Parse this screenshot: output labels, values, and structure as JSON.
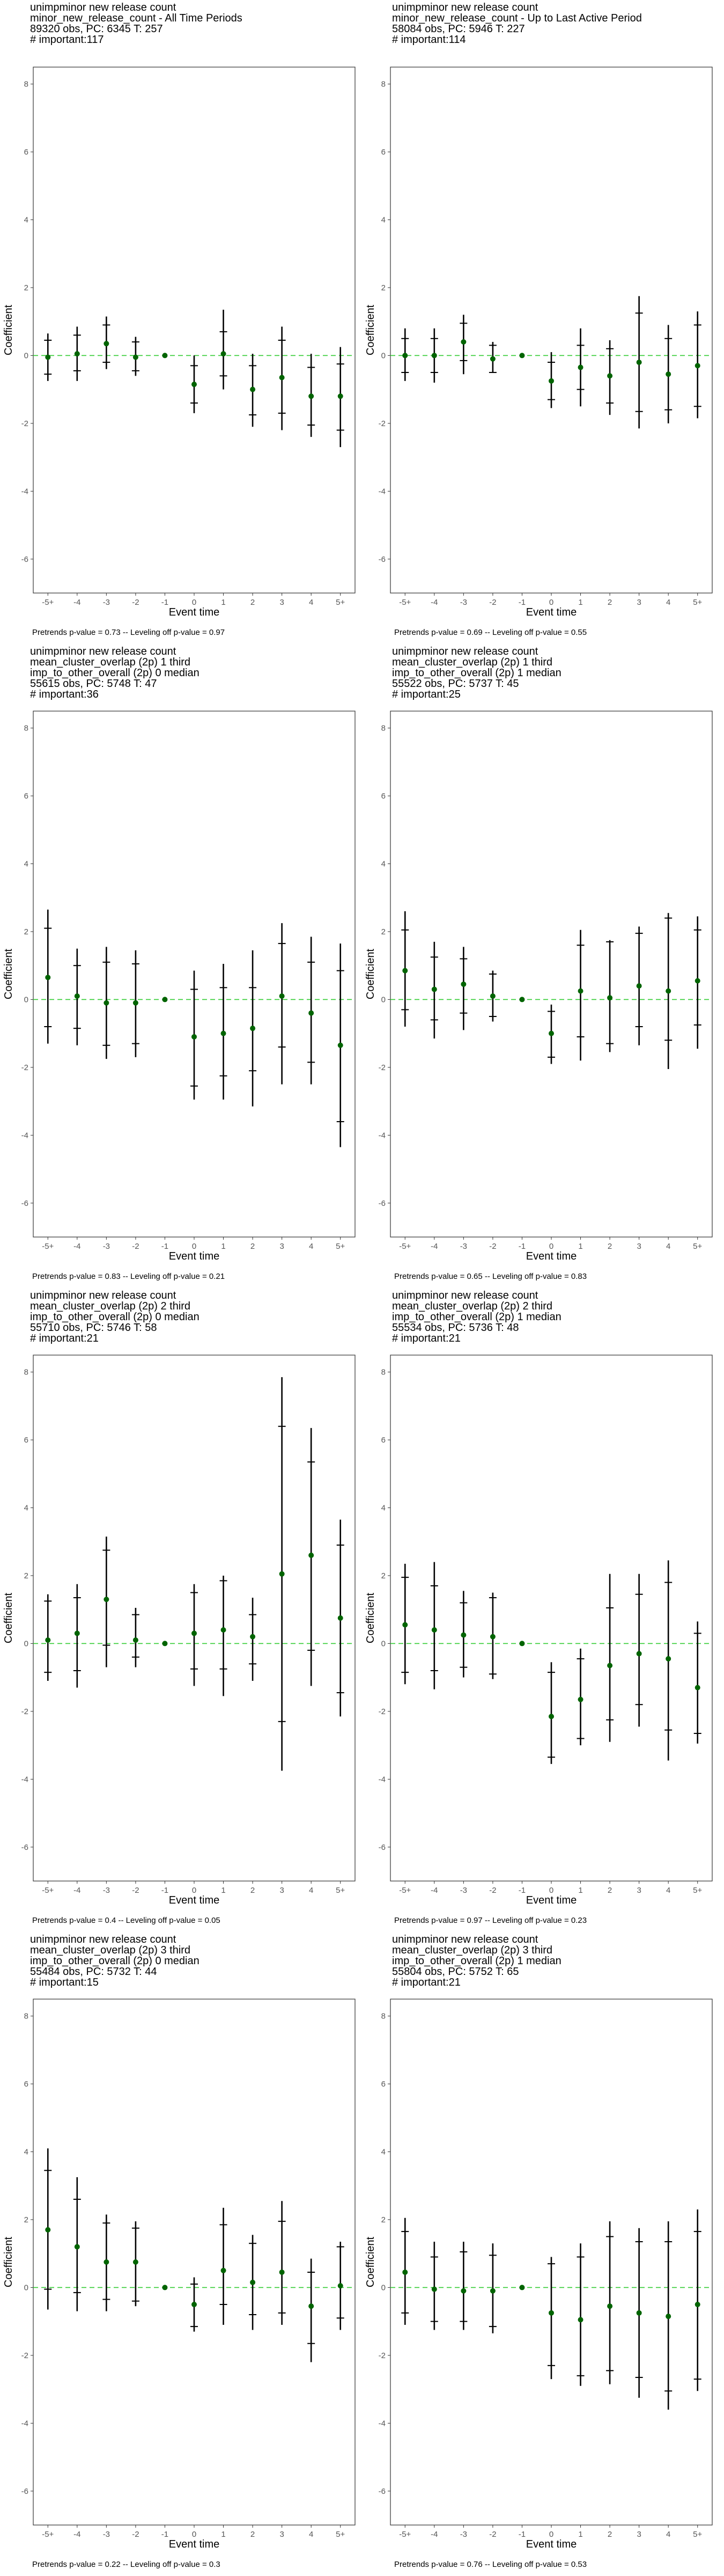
{
  "chart_data": [
    {
      "type": "scatter",
      "title_lines": [
        " unimpminor new release count",
        "minor_new_release_count - All Time Periods",
        "89320 obs, PC: 6345 T: 257",
        "# important:117"
      ],
      "footer": "Pretrends p-value = 0.73 -- Leveling off p-value = 0.97",
      "xlabel": "Event time",
      "ylabel": "Coefficient",
      "ylim": [
        -7,
        8.5
      ],
      "yticks": [
        -6,
        -4,
        -2,
        0,
        2,
        4,
        6,
        8
      ],
      "categories": [
        "-5+",
        "-4",
        "-3",
        "-2",
        "-1",
        "0",
        "1",
        "2",
        "3",
        "4",
        "5+"
      ],
      "series": [
        {
          "values": [
            -0.05,
            0.05,
            0.35,
            -0.05,
            0.0,
            -0.85,
            0.05,
            -1.0,
            -0.65,
            -1.2,
            -1.2
          ],
          "ci90_low": [
            -0.55,
            -0.45,
            -0.2,
            -0.45,
            0.0,
            -1.4,
            -0.6,
            -1.75,
            -1.7,
            -2.05,
            -2.2
          ],
          "ci90_high": [
            0.45,
            0.6,
            0.9,
            0.4,
            0.0,
            -0.3,
            0.7,
            -0.3,
            0.45,
            -0.35,
            -0.25
          ],
          "ci95_low": [
            -0.75,
            -0.75,
            -0.4,
            -0.6,
            0.0,
            -1.7,
            -1.0,
            -2.1,
            -2.2,
            -2.4,
            -2.7
          ],
          "ci95_high": [
            0.65,
            0.85,
            1.15,
            0.55,
            0.0,
            0.0,
            1.35,
            0.05,
            0.85,
            0.05,
            0.25
          ]
        }
      ]
    },
    {
      "type": "scatter",
      "title_lines": [
        " unimpminor new release count",
        "minor_new_release_count - Up to Last Active Period",
        "58084 obs, PC: 5946 T: 227",
        "# important:114"
      ],
      "footer": "Pretrends p-value = 0.69 -- Leveling off p-value = 0.55",
      "xlabel": "Event time",
      "ylabel": "Coefficient",
      "ylim": [
        -7,
        8.5
      ],
      "yticks": [
        -6,
        -4,
        -2,
        0,
        2,
        4,
        6,
        8
      ],
      "categories": [
        "-5+",
        "-4",
        "-3",
        "-2",
        "-1",
        "0",
        "1",
        "2",
        "3",
        "4",
        "5+"
      ],
      "series": [
        {
          "values": [
            0.0,
            0.0,
            0.4,
            -0.1,
            0.0,
            -0.75,
            -0.35,
            -0.6,
            -0.2,
            -0.55,
            -0.3
          ],
          "ci90_low": [
            -0.5,
            -0.5,
            -0.15,
            -0.5,
            0.0,
            -1.3,
            -1.0,
            -1.4,
            -1.65,
            -1.6,
            -1.5
          ],
          "ci90_high": [
            0.5,
            0.5,
            0.95,
            0.3,
            0.0,
            -0.2,
            0.3,
            0.2,
            1.25,
            0.5,
            0.9
          ],
          "ci95_low": [
            -0.75,
            -0.8,
            -0.55,
            -0.5,
            0.0,
            -1.55,
            -1.5,
            -1.75,
            -2.15,
            -2.0,
            -1.85
          ],
          "ci95_high": [
            0.8,
            0.8,
            1.2,
            0.4,
            0.0,
            0.1,
            0.8,
            0.45,
            1.75,
            0.9,
            1.3
          ]
        }
      ]
    },
    {
      "type": "scatter",
      "title_lines": [
        " unimpminor new release count",
        "mean_cluster_overlap (2p) 1 third",
        "imp_to_other_overall (2p) 0 median",
        "55615 obs, PC: 5748 T: 47",
        "# important:36"
      ],
      "footer": "Pretrends p-value = 0.83 -- Leveling off p-value = 0.21",
      "xlabel": "Event time",
      "ylabel": "Coefficient",
      "ylim": [
        -7,
        8.5
      ],
      "yticks": [
        -6,
        -4,
        -2,
        0,
        2,
        4,
        6,
        8
      ],
      "categories": [
        "-5+",
        "-4",
        "-3",
        "-2",
        "-1",
        "0",
        "1",
        "2",
        "3",
        "4",
        "5+"
      ],
      "series": [
        {
          "values": [
            0.65,
            0.1,
            -0.1,
            -0.1,
            0.0,
            -1.1,
            -1.0,
            -0.85,
            0.1,
            -0.4,
            -1.35
          ],
          "ci90_low": [
            -0.8,
            -0.85,
            -1.35,
            -1.3,
            0.0,
            -2.55,
            -2.25,
            -2.1,
            -1.4,
            -1.85,
            -3.6
          ],
          "ci90_high": [
            2.1,
            1.0,
            1.1,
            1.05,
            0.0,
            0.3,
            0.35,
            0.35,
            1.65,
            1.1,
            0.85
          ],
          "ci95_low": [
            -1.3,
            -1.35,
            -1.75,
            -1.7,
            0.0,
            -2.95,
            -2.95,
            -3.15,
            -2.5,
            -2.5,
            -4.35
          ],
          "ci95_high": [
            2.65,
            1.5,
            1.55,
            1.45,
            0.0,
            0.85,
            1.05,
            1.45,
            2.25,
            1.85,
            1.65
          ]
        }
      ]
    },
    {
      "type": "scatter",
      "title_lines": [
        " unimpminor new release count",
        "mean_cluster_overlap (2p) 1 third",
        "imp_to_other_overall (2p) 1 median",
        "55522 obs, PC: 5737 T: 45",
        "# important:25"
      ],
      "footer": "Pretrends p-value = 0.65 -- Leveling off p-value = 0.83",
      "xlabel": "Event time",
      "ylabel": "Coefficient",
      "ylim": [
        -7,
        8.5
      ],
      "yticks": [
        -6,
        -4,
        -2,
        0,
        2,
        4,
        6,
        8
      ],
      "categories": [
        "-5+",
        "-4",
        "-3",
        "-2",
        "-1",
        "0",
        "1",
        "2",
        "3",
        "4",
        "5+"
      ],
      "series": [
        {
          "values": [
            0.85,
            0.3,
            0.45,
            0.1,
            0.0,
            -1.0,
            0.25,
            0.05,
            0.4,
            0.25,
            0.55
          ],
          "ci90_low": [
            -0.3,
            -0.6,
            -0.4,
            -0.5,
            0.0,
            -1.7,
            -1.1,
            -1.3,
            -0.8,
            -1.2,
            -0.75
          ],
          "ci90_high": [
            2.05,
            1.25,
            1.2,
            0.75,
            0.0,
            -0.35,
            1.6,
            1.7,
            1.95,
            2.4,
            2.05
          ],
          "ci95_low": [
            -0.8,
            -1.15,
            -0.9,
            -0.65,
            0.0,
            -1.9,
            -1.8,
            -1.55,
            -1.35,
            -2.05,
            -1.45
          ],
          "ci95_high": [
            2.6,
            1.7,
            1.55,
            0.85,
            0.0,
            -0.15,
            2.05,
            1.75,
            2.15,
            2.55,
            2.45
          ]
        }
      ]
    },
    {
      "type": "scatter",
      "title_lines": [
        " unimpminor new release count",
        "mean_cluster_overlap (2p) 2 third",
        "imp_to_other_overall (2p) 0 median",
        "55710 obs, PC: 5746 T: 58",
        "# important:21"
      ],
      "footer": "Pretrends p-value = 0.4 -- Leveling off p-value = 0.05",
      "xlabel": "Event time",
      "ylabel": "Coefficient",
      "ylim": [
        -7,
        8.5
      ],
      "yticks": [
        -6,
        -4,
        -2,
        0,
        2,
        4,
        6,
        8
      ],
      "categories": [
        "-5+",
        "-4",
        "-3",
        "-2",
        "-1",
        "0",
        "1",
        "2",
        "3",
        "4",
        "5+"
      ],
      "series": [
        {
          "values": [
            0.1,
            0.3,
            1.3,
            0.1,
            0.0,
            0.3,
            0.4,
            0.2,
            2.05,
            2.6,
            0.75
          ],
          "ci90_low": [
            -0.85,
            -0.8,
            -0.05,
            -0.4,
            0.0,
            -0.75,
            -0.75,
            -0.6,
            -2.3,
            -0.2,
            -1.45
          ],
          "ci90_high": [
            1.25,
            1.35,
            2.75,
            0.85,
            0.0,
            1.5,
            1.85,
            0.85,
            6.4,
            5.35,
            2.9
          ],
          "ci95_low": [
            -1.1,
            -1.3,
            -0.7,
            -0.7,
            0.0,
            -1.25,
            -1.55,
            -1.1,
            -3.75,
            -1.25,
            -2.15
          ],
          "ci95_high": [
            1.45,
            1.75,
            3.15,
            1.05,
            0.0,
            1.75,
            2.0,
            1.35,
            7.85,
            6.35,
            3.65
          ]
        }
      ]
    },
    {
      "type": "scatter",
      "title_lines": [
        " unimpminor new release count",
        "mean_cluster_overlap (2p) 2 third",
        "imp_to_other_overall (2p) 1 median",
        "55534 obs, PC: 5736 T: 48",
        "# important:21"
      ],
      "footer": "Pretrends p-value = 0.97 -- Leveling off p-value = 0.23",
      "xlabel": "Event time",
      "ylabel": "Coefficient",
      "ylim": [
        -7,
        8.5
      ],
      "yticks": [
        -6,
        -4,
        -2,
        0,
        2,
        4,
        6,
        8
      ],
      "categories": [
        "-5+",
        "-4",
        "-3",
        "-2",
        "-1",
        "0",
        "1",
        "2",
        "3",
        "4",
        "5+"
      ],
      "series": [
        {
          "values": [
            0.55,
            0.4,
            0.25,
            0.2,
            0.0,
            -2.15,
            -1.65,
            -0.65,
            -0.3,
            -0.45,
            -1.3
          ],
          "ci90_low": [
            -0.85,
            -0.8,
            -0.7,
            -0.9,
            0.0,
            -3.35,
            -2.8,
            -2.25,
            -1.8,
            -2.55,
            -2.65
          ],
          "ci90_high": [
            1.95,
            1.7,
            1.2,
            1.35,
            0.0,
            -0.85,
            -0.45,
            1.05,
            1.45,
            1.8,
            0.3
          ],
          "ci95_low": [
            -1.2,
            -1.35,
            -1.0,
            -1.05,
            0.0,
            -3.55,
            -3.0,
            -2.9,
            -2.45,
            -3.45,
            -2.95
          ],
          "ci95_high": [
            2.35,
            2.4,
            1.55,
            1.5,
            0.0,
            -0.55,
            -0.15,
            2.05,
            2.05,
            2.45,
            0.65
          ]
        }
      ]
    },
    {
      "type": "scatter",
      "title_lines": [
        " unimpminor new release count",
        "mean_cluster_overlap (2p) 3 third",
        "imp_to_other_overall (2p) 0 median",
        "55484 obs, PC: 5732 T: 44",
        "# important:15"
      ],
      "footer": "Pretrends p-value = 0.22 -- Leveling off p-value = 0.3",
      "xlabel": "Event time",
      "ylabel": "Coefficient",
      "ylim": [
        -7,
        8.5
      ],
      "yticks": [
        -6,
        -4,
        -2,
        0,
        2,
        4,
        6,
        8
      ],
      "categories": [
        "-5+",
        "-4",
        "-3",
        "-2",
        "-1",
        "0",
        "1",
        "2",
        "3",
        "4",
        "5+"
      ],
      "series": [
        {
          "values": [
            1.7,
            1.2,
            0.75,
            0.75,
            0.0,
            -0.5,
            0.5,
            0.15,
            0.45,
            -0.55,
            0.05
          ],
          "ci90_low": [
            -0.05,
            -0.15,
            -0.35,
            -0.4,
            0.0,
            -1.15,
            -0.5,
            -0.8,
            -0.75,
            -1.65,
            -0.9
          ],
          "ci90_high": [
            3.45,
            2.6,
            1.9,
            1.75,
            0.0,
            0.1,
            1.85,
            1.3,
            1.95,
            0.45,
            1.2
          ],
          "ci95_low": [
            -0.65,
            -0.7,
            -0.7,
            -0.55,
            0.0,
            -1.3,
            -1.1,
            -1.25,
            -1.1,
            -2.2,
            -1.25
          ],
          "ci95_high": [
            4.1,
            3.25,
            2.15,
            1.95,
            0.0,
            0.3,
            2.35,
            1.55,
            2.55,
            0.85,
            1.35
          ]
        }
      ]
    },
    {
      "type": "scatter",
      "title_lines": [
        " unimpminor new release count",
        "mean_cluster_overlap (2p) 3 third",
        "imp_to_other_overall (2p) 1 median",
        "55804 obs, PC: 5752 T: 65",
        "# important:21"
      ],
      "footer": "Pretrends p-value = 0.76 -- Leveling off p-value = 0.53",
      "xlabel": "Event time",
      "ylabel": "Coefficient",
      "ylim": [
        -7,
        8.5
      ],
      "yticks": [
        -6,
        -4,
        -2,
        0,
        2,
        4,
        6,
        8
      ],
      "categories": [
        "-5+",
        "-4",
        "-3",
        "-2",
        "-1",
        "0",
        "1",
        "2",
        "3",
        "4",
        "5+"
      ],
      "series": [
        {
          "values": [
            0.45,
            -0.05,
            -0.1,
            -0.1,
            0.0,
            -0.75,
            -0.95,
            -0.55,
            -0.75,
            -0.85,
            -0.5
          ],
          "ci90_low": [
            -0.75,
            -1.0,
            -1.0,
            -1.15,
            0.0,
            -2.3,
            -2.6,
            -2.45,
            -2.65,
            -3.05,
            -2.7
          ],
          "ci90_high": [
            1.65,
            0.9,
            1.05,
            0.95,
            0.0,
            0.7,
            0.9,
            1.5,
            1.35,
            1.35,
            1.65
          ],
          "ci95_low": [
            -1.1,
            -1.25,
            -1.25,
            -1.35,
            0.0,
            -2.7,
            -2.9,
            -2.85,
            -3.25,
            -3.6,
            -3.05
          ],
          "ci95_high": [
            2.05,
            1.35,
            1.35,
            1.3,
            0.0,
            0.9,
            1.3,
            1.95,
            1.75,
            1.95,
            2.3
          ]
        }
      ]
    }
  ]
}
